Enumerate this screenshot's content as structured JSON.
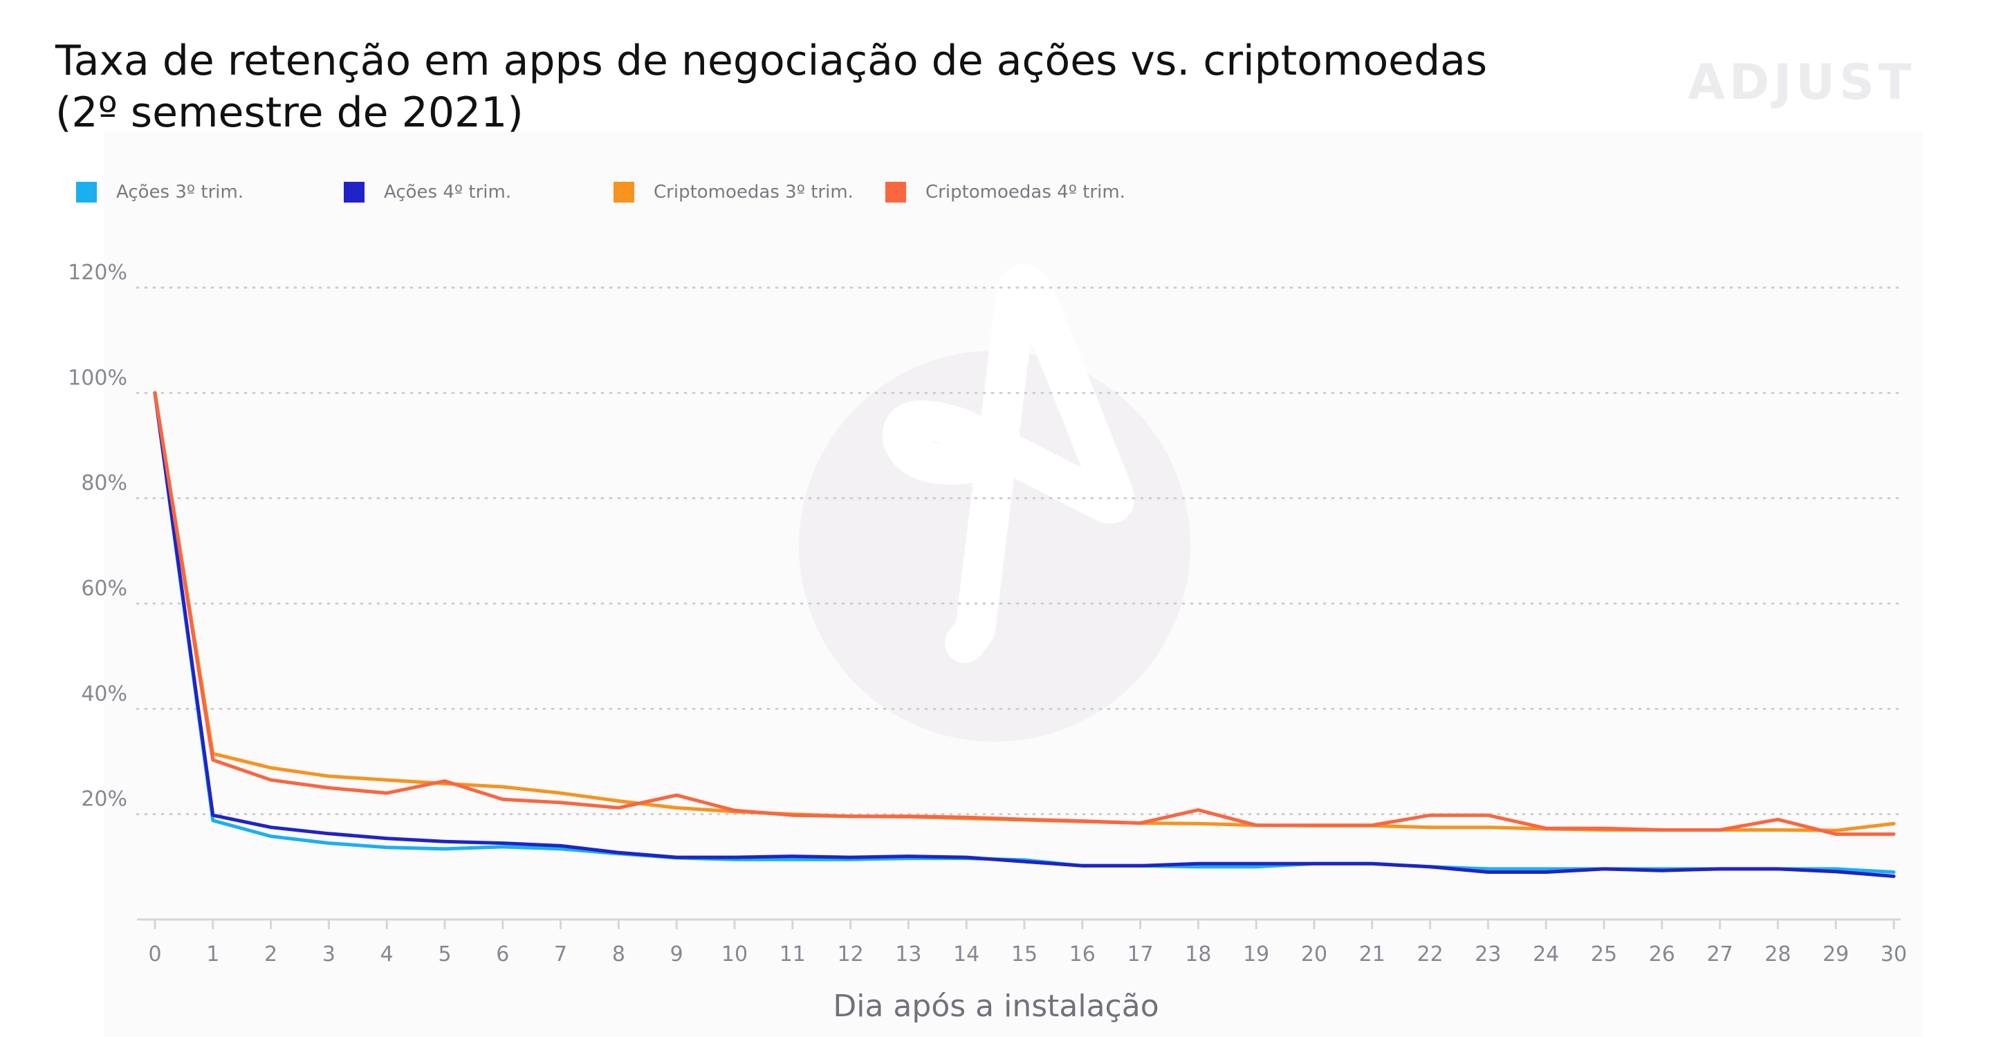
{
  "title": {
    "line1": "Taxa de retenção em apps de negociação de ações vs. criptomoedas",
    "line2": "(2º semestre de 2021)"
  },
  "brand": {
    "logo_text": "ADJUST",
    "logo_color": "#ececee",
    "watermark_icon": "adjust-logo-icon"
  },
  "legend": [
    {
      "label": "Ações 3º trim.",
      "color": "#1ab0f0"
    },
    {
      "label": "Ações 4º trim.",
      "color": "#1f23c8"
    },
    {
      "label": "Criptomoedas 3º trim.",
      "color": "#f7931e"
    },
    {
      "label": "Criptomoedas 4º trim.",
      "color": "#fa6640"
    }
  ],
  "chart_data": {
    "type": "line",
    "title": "Taxa de retenção em apps de negociação de ações vs. criptomoedas (2º semestre de 2021)",
    "xlabel": "Dia após a instalação",
    "ylabel": "",
    "x": [
      0,
      1,
      2,
      3,
      4,
      5,
      6,
      7,
      8,
      9,
      10,
      11,
      12,
      13,
      14,
      15,
      16,
      17,
      18,
      19,
      20,
      21,
      22,
      23,
      24,
      25,
      26,
      27,
      28,
      29,
      30
    ],
    "y_ticks": [
      20,
      40,
      60,
      80,
      100,
      120
    ],
    "y_tick_labels": [
      "20%",
      "40%",
      "60%",
      "80%",
      "100%",
      "120%"
    ],
    "ylim": [
      0,
      120
    ],
    "grid": "horizontal dotted",
    "legend_position": "top-left",
    "series": [
      {
        "name": "Ações 3º trim.",
        "color": "#1ab0f0",
        "values": [
          100,
          18.8,
          15.8,
          14.5,
          13.7,
          13.4,
          13.8,
          13.4,
          12.5,
          11.7,
          11.4,
          11.4,
          11.4,
          11.6,
          11.6,
          11.3,
          10.2,
          10.2,
          10.0,
          10.0,
          10.6,
          10.6,
          10.0,
          9.6,
          9.6,
          9.6,
          9.6,
          9.6,
          9.6,
          9.6,
          9.0
        ]
      },
      {
        "name": "Ações 4º trim.",
        "color": "#1f23c8",
        "values": [
          100,
          19.8,
          17.5,
          16.3,
          15.4,
          14.8,
          14.5,
          14.0,
          12.7,
          11.8,
          11.8,
          12.0,
          11.8,
          12.0,
          11.8,
          11.0,
          10.2,
          10.2,
          10.6,
          10.6,
          10.6,
          10.6,
          10.0,
          9.0,
          9.0,
          9.6,
          9.3,
          9.6,
          9.6,
          9.1,
          8.2
        ]
      },
      {
        "name": "Criptomoedas 3º trim.",
        "color": "#f7931e",
        "values": [
          100,
          31.5,
          28.8,
          27.2,
          26.5,
          25.8,
          25.2,
          24.0,
          22.5,
          21.2,
          20.5,
          20.0,
          19.6,
          19.5,
          19.2,
          18.9,
          18.6,
          18.3,
          18.2,
          17.9,
          17.8,
          17.8,
          17.5,
          17.5,
          17.2,
          17.0,
          17.0,
          17.0,
          17.0,
          16.9,
          18.2
        ]
      },
      {
        "name": "Criptomoedas 4º trim.",
        "color": "#fa6640",
        "values": [
          100,
          30.3,
          26.5,
          25.0,
          24.0,
          26.3,
          22.8,
          22.2,
          21.2,
          23.6,
          20.7,
          19.8,
          19.6,
          19.6,
          19.4,
          19.0,
          18.7,
          18.3,
          20.8,
          17.9,
          17.9,
          17.9,
          19.8,
          19.8,
          17.3,
          17.3,
          17.0,
          17.0,
          19.0,
          16.2,
          16.2
        ]
      }
    ]
  }
}
